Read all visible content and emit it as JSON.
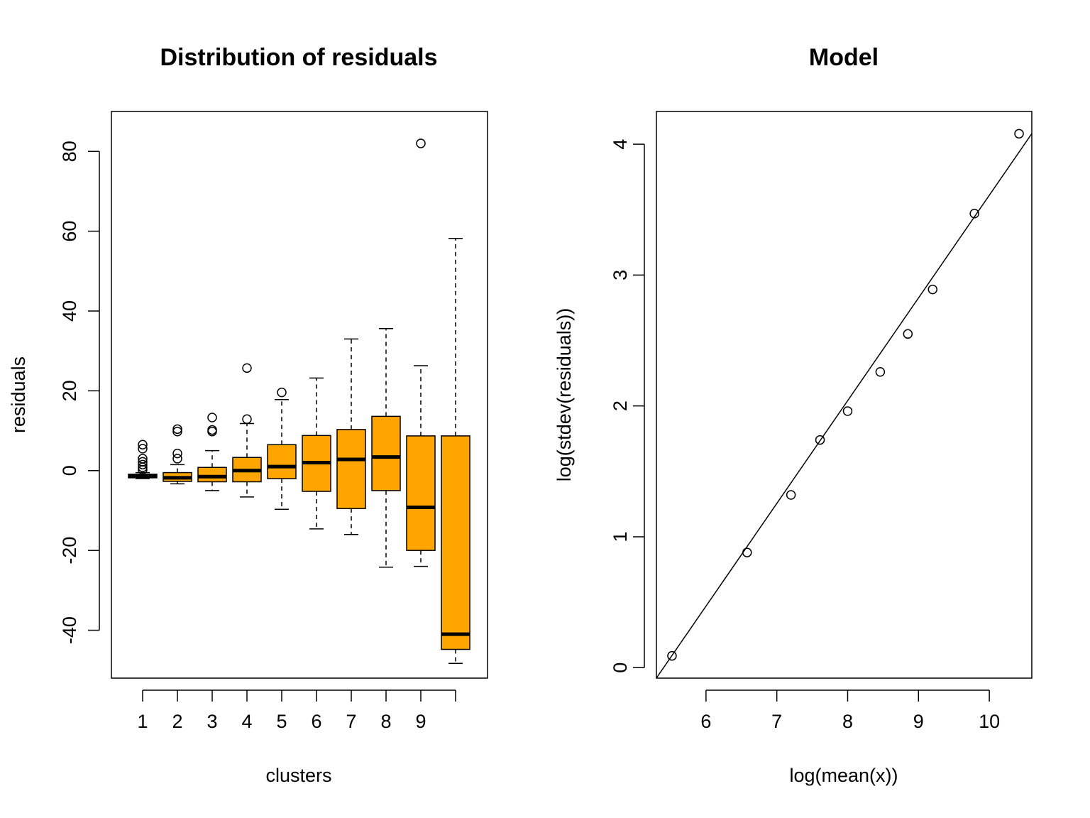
{
  "chart_data": [
    {
      "type": "boxplot",
      "title": "Distribution of residuals",
      "xlabel": "clusters",
      "ylabel": "residuals",
      "ylim": [
        -52,
        90
      ],
      "x_tick_labels": [
        "1",
        "2",
        "3",
        "4",
        "5",
        "6",
        "7",
        "8",
        "9"
      ],
      "y_ticks": [
        -40,
        -20,
        0,
        20,
        40,
        60,
        80
      ],
      "y_tick_labels": [
        "-40",
        "-20",
        "0",
        "20",
        "40",
        "60",
        "80"
      ],
      "box_color": "#FFA500",
      "boxes": [
        {
          "category": "1",
          "whisker_low": -2,
          "q1": -1.8,
          "median": -1.3,
          "q3": -0.9,
          "whisker_high": -0.5,
          "outliers": [
            0.2,
            0.8,
            1.5,
            2.2,
            3,
            5.5,
            6.5
          ]
        },
        {
          "category": "2",
          "whisker_low": -3.3,
          "q1": -2.7,
          "median": -1.8,
          "q3": -0.5,
          "whisker_high": 1.5,
          "outliers": [
            3,
            4.3,
            9.8,
            10.4
          ]
        },
        {
          "category": "3",
          "whisker_low": -5,
          "q1": -2.8,
          "median": -1.5,
          "q3": 0.8,
          "whisker_high": 5,
          "outliers": [
            9.8,
            10.2,
            13.3
          ]
        },
        {
          "category": "4",
          "whisker_low": -6.6,
          "q1": -2.8,
          "median": 0,
          "q3": 3.3,
          "whisker_high": 11.8,
          "outliers": [
            12.9,
            25.7
          ]
        },
        {
          "category": "5",
          "whisker_low": -9.7,
          "q1": -2,
          "median": 1,
          "q3": 6.5,
          "whisker_high": 17.8,
          "outliers": [
            19.6
          ]
        },
        {
          "category": "6",
          "whisker_low": -14.6,
          "q1": -5.2,
          "median": 2,
          "q3": 8.8,
          "whisker_high": 23.2,
          "outliers": []
        },
        {
          "category": "7",
          "whisker_low": -16,
          "q1": -9.5,
          "median": 2.8,
          "q3": 10.3,
          "whisker_high": 33,
          "outliers": []
        },
        {
          "category": "8",
          "whisker_low": -24.2,
          "q1": -5,
          "median": 3.4,
          "q3": 13.6,
          "whisker_high": 35.6,
          "outliers": []
        },
        {
          "category": "9",
          "whisker_low": -24,
          "q1": -20,
          "median": -9.2,
          "q3": 8.7,
          "whisker_high": 26.3,
          "outliers": [
            82
          ]
        },
        {
          "category": "",
          "whisker_low": -48.3,
          "q1": -44.8,
          "median": -41,
          "q3": 8.7,
          "whisker_high": 58.2,
          "outliers": []
        }
      ]
    },
    {
      "type": "scatter",
      "title": "Model",
      "xlabel": "log(mean(x))",
      "ylabel": "log(stdev(residuals))",
      "xlim": [
        5.3,
        10.6
      ],
      "ylim": [
        -0.08,
        4.25
      ],
      "x_ticks": [
        6,
        7,
        8,
        9,
        10
      ],
      "x_tick_labels": [
        "6",
        "7",
        "8",
        "9",
        "10"
      ],
      "y_ticks": [
        0,
        1,
        2,
        3,
        4
      ],
      "y_tick_labels": [
        "0",
        "1",
        "2",
        "3",
        "4"
      ],
      "points": [
        {
          "x": 5.52,
          "y": 0.09
        },
        {
          "x": 6.58,
          "y": 0.88
        },
        {
          "x": 7.2,
          "y": 1.32
        },
        {
          "x": 7.61,
          "y": 1.74
        },
        {
          "x": 8.0,
          "y": 1.96
        },
        {
          "x": 8.46,
          "y": 2.26
        },
        {
          "x": 8.85,
          "y": 2.55
        },
        {
          "x": 9.2,
          "y": 2.89
        },
        {
          "x": 9.79,
          "y": 3.47
        },
        {
          "x": 10.42,
          "y": 4.08
        }
      ],
      "fit_line": {
        "intercept": -4.24,
        "slope": 0.785
      }
    }
  ]
}
